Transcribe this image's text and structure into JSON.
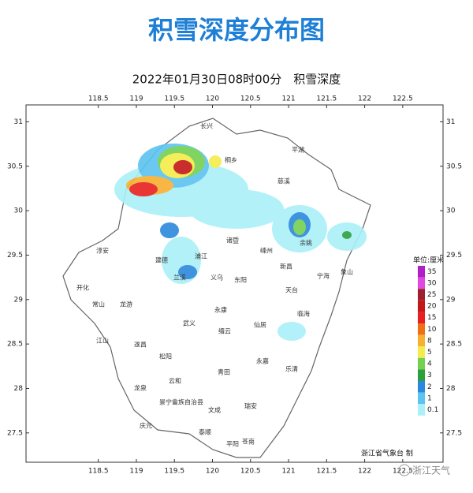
{
  "header": {
    "title": "积雪深度分布图",
    "subtitle": "2022年01月30日08时00分　积雪深度"
  },
  "map": {
    "xlim": [
      117.55,
      123.03
    ],
    "ylim": [
      27.17,
      31.19
    ],
    "lon_ticks": [
      118.5,
      119,
      119.5,
      120,
      120.5,
      121,
      121.5,
      122,
      122.5
    ],
    "lat_ticks": [
      27.5,
      28,
      28.5,
      29,
      29.5,
      30,
      30.5,
      31
    ],
    "places": [
      "长兴",
      "桐乡",
      "平湖",
      "淳安",
      "建德",
      "浦江",
      "兰溪",
      "义乌",
      "东阳",
      "诸暨",
      "嵊州",
      "新昌",
      "宁海",
      "象山",
      "天台",
      "临海",
      "开化",
      "常山",
      "龙游",
      "江山",
      "遂昌",
      "松阳",
      "武义",
      "永康",
      "缙云",
      "仙居",
      "云和",
      "龙泉",
      "景宁畲族自治县",
      "庆元",
      "泰顺",
      "文成",
      "青田",
      "永嘉",
      "乐清",
      "平阳",
      "苍南",
      "瑞安",
      "慈溪",
      "余姚"
    ]
  },
  "legend": {
    "title": "单位:厘米",
    "levels": [
      {
        "label": "35",
        "color": "#b020c8"
      },
      {
        "label": "30",
        "color": "#e048e0"
      },
      {
        "label": "25",
        "color": "#9c2030"
      },
      {
        "label": "20",
        "color": "#c41818"
      },
      {
        "label": "15",
        "color": "#e82020"
      },
      {
        "label": "10",
        "color": "#f07018"
      },
      {
        "label": "8",
        "color": "#f8b030"
      },
      {
        "label": "5",
        "color": "#f4ec48"
      },
      {
        "label": "4",
        "color": "#74d050"
      },
      {
        "label": "3",
        "color": "#2ca03c"
      },
      {
        "label": "2",
        "color": "#2c88dc"
      },
      {
        "label": "1",
        "color": "#5cc4f0"
      },
      {
        "label": "0.1",
        "color": "#aaf0f8"
      }
    ]
  },
  "footer": {
    "credit": "浙江省气象台 制",
    "watermark": "浙江天气"
  }
}
